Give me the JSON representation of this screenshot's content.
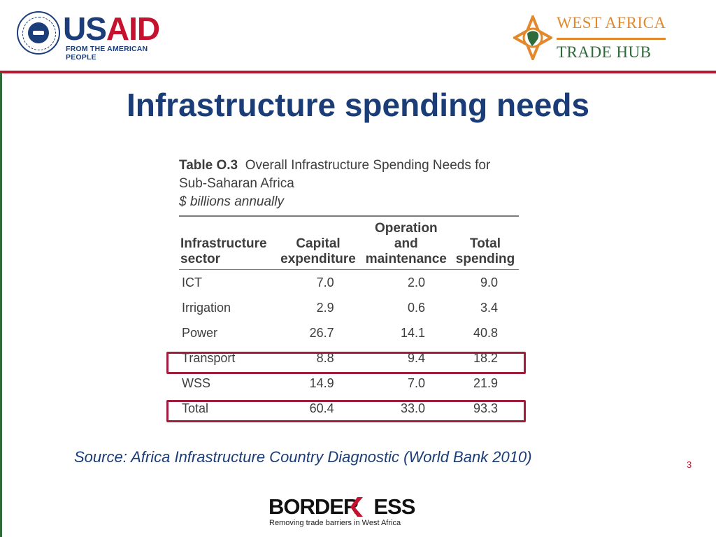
{
  "header": {
    "usaid": {
      "name_part1": "US",
      "name_part2": "AID",
      "tagline": "FROM THE AMERICAN PEOPLE",
      "seal_icon": "usaid-seal-icon"
    },
    "wath": {
      "line1": "WEST AFRICA",
      "line2": "TRADE HUB",
      "mark_icon": "africa-compass-icon"
    }
  },
  "slide": {
    "title": "Infrastructure spending needs",
    "page_number": "3",
    "source": "Source: Africa Infrastructure Country Diagnostic (World Bank  2010)"
  },
  "table": {
    "label": "Table O.3",
    "caption_rest": "Overall Infrastructure Spending Needs for",
    "caption_line2": "Sub-Saharan Africa",
    "units": "$ billions annually",
    "headers": {
      "sector_l1": "Infrastructure",
      "sector_l2": "sector",
      "capital_l1": "Capital",
      "capital_l2": "expenditure",
      "om_l1": "Operation",
      "om_l2": "and",
      "om_l3": "maintenance",
      "total_l1": "Total",
      "total_l2": "spending"
    },
    "rows": [
      {
        "sector": "ICT",
        "capital": "7.0",
        "om": "2.0",
        "total": "9.0"
      },
      {
        "sector": "Irrigation",
        "capital": "2.9",
        "om": "0.6",
        "total": "3.4"
      },
      {
        "sector": "Power",
        "capital": "26.7",
        "om": "14.1",
        "total": "40.8"
      },
      {
        "sector": "Transport",
        "capital": "8.8",
        "om": "9.4",
        "total": "18.2"
      },
      {
        "sector": "WSS",
        "capital": "14.9",
        "om": "7.0",
        "total": "21.9"
      },
      {
        "sector": "Total",
        "capital": "60.4",
        "om": "33.0",
        "total": "93.3"
      }
    ],
    "highlighted_rows": [
      "Transport",
      "Total"
    ],
    "highlight_color": "#a01d3c"
  },
  "footer": {
    "logo_left": "BORDER",
    "logo_right": "ESS",
    "tagline": "Removing trade barriers in West Africa"
  },
  "colors": {
    "title": "#1a3d78",
    "rule": "#b3192f",
    "usaid_blue": "#1b3d7a",
    "usaid_red": "#c4122f",
    "wath_orange": "#e1892c",
    "wath_green": "#2e6b3a"
  }
}
